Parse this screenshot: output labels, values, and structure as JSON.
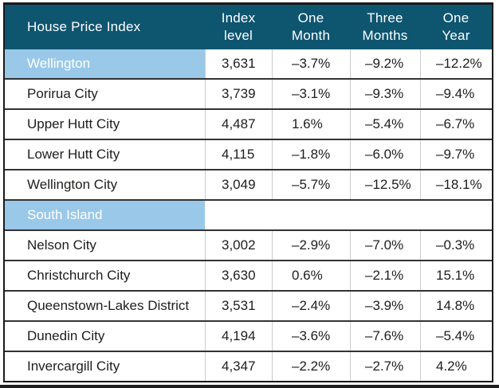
{
  "chart_data": {
    "type": "table",
    "title": "House Price Index",
    "column_headers": [
      {
        "label": "Index level",
        "line1": "Index",
        "line2": "level"
      },
      {
        "label": "One Month",
        "line1": "One",
        "line2": "Month"
      },
      {
        "label": "Three Months",
        "line1": "Three",
        "line2": "Months"
      },
      {
        "label": "One Year",
        "line1": "One",
        "line2": "Year"
      }
    ],
    "rows": [
      {
        "name": "Wellington",
        "style": "highlight",
        "index_level": "3,631",
        "one_month": "–3.7%",
        "three_months": "–9.2%",
        "one_year": "–12.2%"
      },
      {
        "name": "Porirua City",
        "style": "normal",
        "index_level": "3,739",
        "one_month": "–3.1%",
        "three_months": "–9.3%",
        "one_year": "–9.4%"
      },
      {
        "name": "Upper Hutt City",
        "style": "normal",
        "index_level": "4,487",
        "one_month": "1.6%",
        "three_months": "–5.4%",
        "one_year": "–6.7%"
      },
      {
        "name": "Lower Hutt City",
        "style": "normal",
        "index_level": "4,115",
        "one_month": "–1.8%",
        "three_months": "–6.0%",
        "one_year": "–9.7%"
      },
      {
        "name": "Wellington City",
        "style": "normal",
        "index_level": "3,049",
        "one_month": "–5.7%",
        "three_months": "–12.5%",
        "one_year": "–18.1%"
      },
      {
        "name": "South Island",
        "style": "section",
        "index_level": "",
        "one_month": "",
        "three_months": "",
        "one_year": ""
      },
      {
        "name": "Nelson City",
        "style": "normal",
        "index_level": "3,002",
        "one_month": "–2.9%",
        "three_months": "–7.0%",
        "one_year": "–0.3%"
      },
      {
        "name": "Christchurch City",
        "style": "normal",
        "index_level": "3,630",
        "one_month": "0.6%",
        "three_months": "–2.1%",
        "one_year": "15.1%"
      },
      {
        "name": "Queenstown-Lakes District",
        "style": "normal",
        "index_level": "3,531",
        "one_month": "–2.4%",
        "three_months": "–3.9%",
        "one_year": "14.8%"
      },
      {
        "name": "Dunedin City",
        "style": "normal",
        "index_level": "4,194",
        "one_month": "–3.6%",
        "three_months": "–7.6%",
        "one_year": "–5.4%"
      },
      {
        "name": "Invercargill City",
        "style": "normal",
        "index_level": "4,347",
        "one_month": "–2.2%",
        "three_months": "–2.7%",
        "one_year": "4.2%"
      }
    ]
  },
  "colors": {
    "header_bg": "#0E5570",
    "header_text": "#ffffff",
    "highlight_bg": "#9AC8E9",
    "highlight_text": "#ffffff",
    "body_text": "#1d1d1b",
    "row_separator": "#333333",
    "column_separator": "#cccccc",
    "outer_border": "#1a1a1a"
  }
}
